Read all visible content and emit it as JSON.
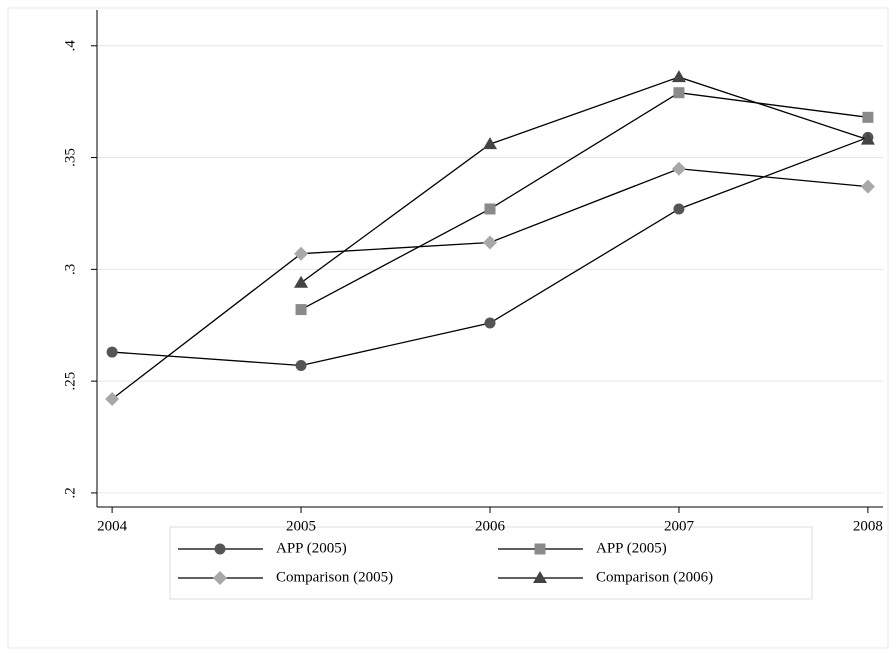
{
  "chart_data": {
    "type": "line",
    "x": [
      2004,
      2005,
      2006,
      2007,
      2008
    ],
    "series": [
      {
        "name": "APP (2005)",
        "color": "#555555",
        "marker": "circle",
        "values": [
          0.263,
          0.257,
          0.276,
          0.327,
          0.359
        ]
      },
      {
        "name": "APP (2005)",
        "color": "#8a8a8a",
        "marker": "square",
        "values": [
          null,
          0.282,
          0.327,
          0.379,
          0.368
        ]
      },
      {
        "name": "Comparison (2005)",
        "color": "#a8a8a8",
        "marker": "diamond",
        "values": [
          0.242,
          0.307,
          0.312,
          0.345,
          0.337
        ]
      },
      {
        "name": "Comparison (2006)",
        "color": "#444444",
        "marker": "triangle",
        "values": [
          null,
          0.294,
          0.356,
          0.386,
          0.358
        ]
      }
    ],
    "xlim": [
      2003.92,
      2008.08
    ],
    "xticks": [
      2004,
      2005,
      2006,
      2007,
      2008
    ],
    "ylim": [
      0.1937,
      0.416
    ],
    "yticks": [
      {
        "value": 0.2,
        "label": ".2"
      },
      {
        "value": 0.25,
        "label": ".25"
      },
      {
        "value": 0.3,
        "label": ".3"
      },
      {
        "value": 0.35,
        "label": ".35"
      },
      {
        "value": 0.4,
        "label": ".4"
      }
    ],
    "grid": true,
    "legend": "bottom"
  }
}
